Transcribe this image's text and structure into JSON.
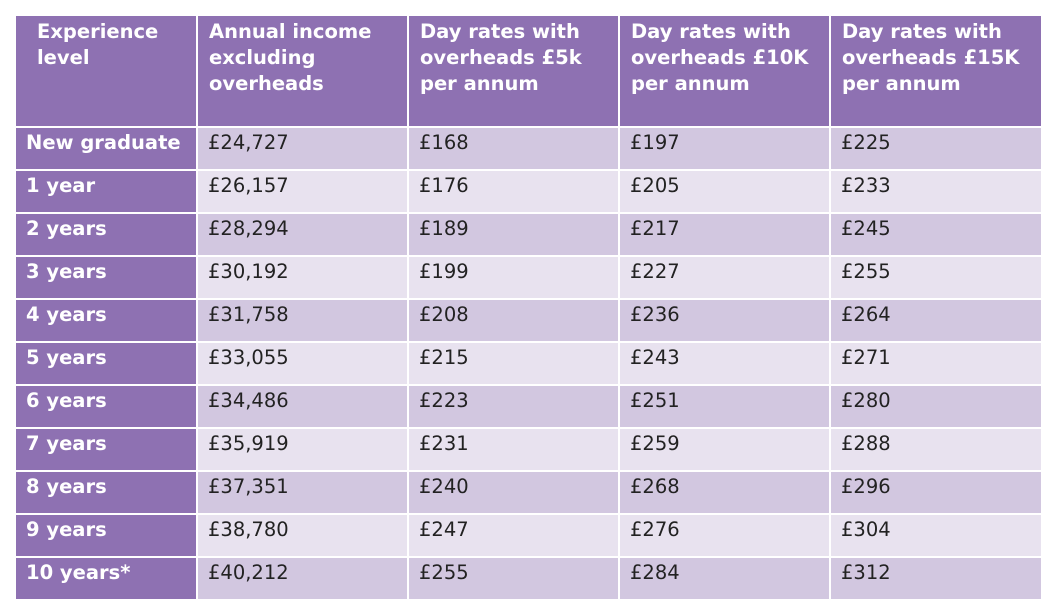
{
  "table": {
    "headers": [
      "Experience level",
      "Annual income excluding overheads",
      "Day rates with overheads £5k per annum",
      "Day rates with overheads £10K per annum",
      "Day rates with overheads £15K per annum"
    ],
    "rows": [
      [
        "New graduate",
        "£24,727",
        "£168",
        "£197",
        "£225"
      ],
      [
        "1 year",
        "£26,157",
        "£176",
        "£205",
        "£233"
      ],
      [
        "2 years",
        "£28,294",
        "£189",
        "£217",
        "£245"
      ],
      [
        "3 years",
        "£30,192",
        "£199",
        "£227",
        "£255"
      ],
      [
        "4 years",
        "£31,758",
        "£208",
        "£236",
        "£264"
      ],
      [
        "5 years",
        "£33,055",
        "£215",
        "£243",
        "£271"
      ],
      [
        "6 years",
        "£34,486",
        "£223",
        "£251",
        "£280"
      ],
      [
        "7 years",
        "£35,919",
        "£231",
        "£259",
        "£288"
      ],
      [
        "8 years",
        "£37,351",
        "£240",
        "£268",
        "£296"
      ],
      [
        "9 years",
        "£38,780",
        "£247",
        "£276",
        "£304"
      ],
      [
        "10 years*",
        "£40,212",
        "£255",
        "£284",
        "£312"
      ]
    ]
  },
  "colors": {
    "header_purple": "#8e71b2",
    "row_light": "#e8e2ef",
    "row_mid": "#d2c7e0",
    "header_text": "#ffffff"
  }
}
